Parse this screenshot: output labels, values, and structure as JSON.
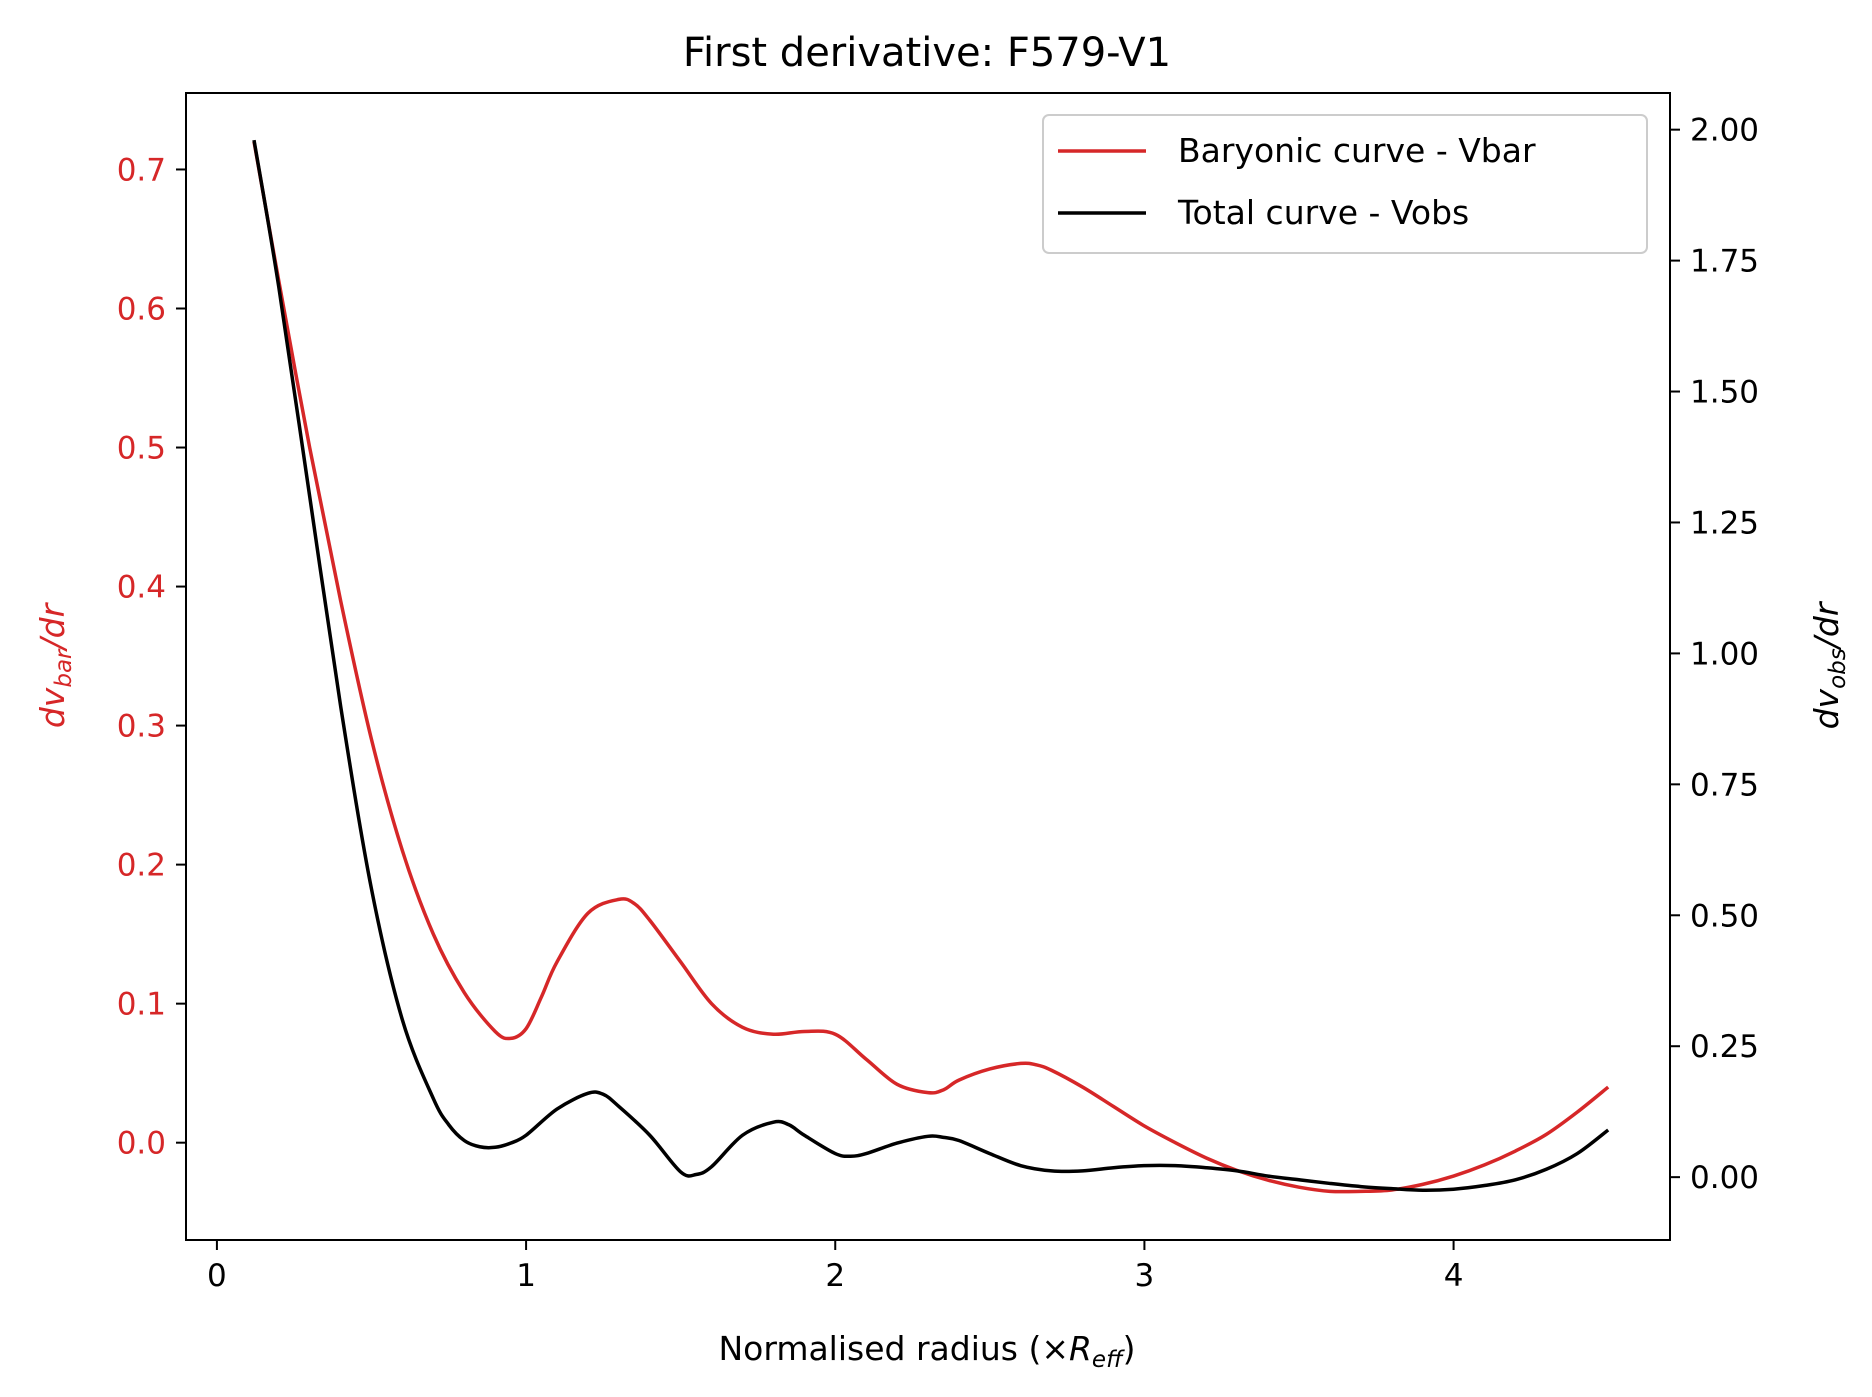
{
  "chart_data": {
    "type": "line",
    "title": "First derivative: F579-V1",
    "xlabel": {
      "main": "Normalised radius (×",
      "italic": "R",
      "sub": "eff",
      "close": ")"
    },
    "ylabel_left": {
      "d": "dv",
      "sub": "bar",
      "tail": "/dr"
    },
    "ylabel_right": {
      "d": "dv",
      "sub": "obs",
      "tail": "/dr"
    },
    "xlim": [
      -0.1,
      4.7
    ],
    "ylim_left": [
      -0.07,
      0.755
    ],
    "ylim_right": [
      -0.12,
      2.07
    ],
    "x_ticks": [
      "0",
      "1",
      "2",
      "3",
      "4"
    ],
    "y_left_ticks": [
      "0.0",
      "0.1",
      "0.2",
      "0.3",
      "0.4",
      "0.5",
      "0.6",
      "0.7"
    ],
    "y_right_ticks": [
      "0.00",
      "0.25",
      "0.50",
      "0.75",
      "1.00",
      "1.25",
      "1.50",
      "1.75",
      "2.00"
    ],
    "legend_position": "upper right",
    "colors": {
      "vbar": "#d62728",
      "vobs": "#000000",
      "left_axis": "#d62728",
      "right_axis": "#000000"
    },
    "series": [
      {
        "name": "Baryonic curve - Vbar",
        "axis": "left",
        "color": "#d62728",
        "x": [
          0.12,
          0.2,
          0.3,
          0.4,
          0.5,
          0.6,
          0.7,
          0.8,
          0.9,
          0.95,
          1.0,
          1.05,
          1.1,
          1.2,
          1.3,
          1.35,
          1.4,
          1.5,
          1.6,
          1.7,
          1.8,
          1.9,
          2.0,
          2.1,
          2.2,
          2.3,
          2.35,
          2.4,
          2.5,
          2.6,
          2.65,
          2.7,
          2.8,
          2.9,
          3.0,
          3.1,
          3.2,
          3.3,
          3.4,
          3.5,
          3.6,
          3.7,
          3.8,
          3.9,
          4.0,
          4.1,
          4.2,
          4.3,
          4.4,
          4.5
        ],
        "values": [
          0.72,
          0.62,
          0.5,
          0.39,
          0.29,
          0.21,
          0.15,
          0.108,
          0.08,
          0.075,
          0.082,
          0.105,
          0.13,
          0.165,
          0.175,
          0.172,
          0.16,
          0.13,
          0.1,
          0.083,
          0.078,
          0.08,
          0.078,
          0.06,
          0.042,
          0.036,
          0.038,
          0.045,
          0.053,
          0.057,
          0.056,
          0.052,
          0.04,
          0.026,
          0.012,
          0.0,
          -0.011,
          -0.02,
          -0.027,
          -0.032,
          -0.035,
          -0.035,
          -0.034,
          -0.03,
          -0.024,
          -0.016,
          -0.006,
          0.006,
          0.022,
          0.04
        ]
      },
      {
        "name": "Total curve - Vobs",
        "axis": "right",
        "color": "#000000",
        "x": [
          0.12,
          0.2,
          0.3,
          0.4,
          0.5,
          0.6,
          0.7,
          0.75,
          0.8,
          0.85,
          0.9,
          0.95,
          1.0,
          1.1,
          1.2,
          1.25,
          1.3,
          1.4,
          1.5,
          1.55,
          1.6,
          1.7,
          1.8,
          1.85,
          1.9,
          2.0,
          2.05,
          2.1,
          2.2,
          2.3,
          2.35,
          2.4,
          2.5,
          2.6,
          2.7,
          2.8,
          2.9,
          3.0,
          3.1,
          3.2,
          3.3,
          3.4,
          3.5,
          3.6,
          3.7,
          3.8,
          3.9,
          4.0,
          4.1,
          4.2,
          4.3,
          4.4,
          4.5
        ],
        "values": [
          1.98,
          1.7,
          1.3,
          0.9,
          0.55,
          0.3,
          0.15,
          0.1,
          0.07,
          0.058,
          0.057,
          0.065,
          0.08,
          0.13,
          0.16,
          0.158,
          0.135,
          0.08,
          0.01,
          0.005,
          0.02,
          0.08,
          0.105,
          0.1,
          0.08,
          0.045,
          0.04,
          0.045,
          0.065,
          0.078,
          0.076,
          0.07,
          0.045,
          0.022,
          0.012,
          0.012,
          0.018,
          0.022,
          0.022,
          0.018,
          0.012,
          0.002,
          -0.005,
          -0.012,
          -0.018,
          -0.022,
          -0.025,
          -0.023,
          -0.016,
          -0.005,
          0.015,
          0.045,
          0.09
        ]
      }
    ]
  }
}
